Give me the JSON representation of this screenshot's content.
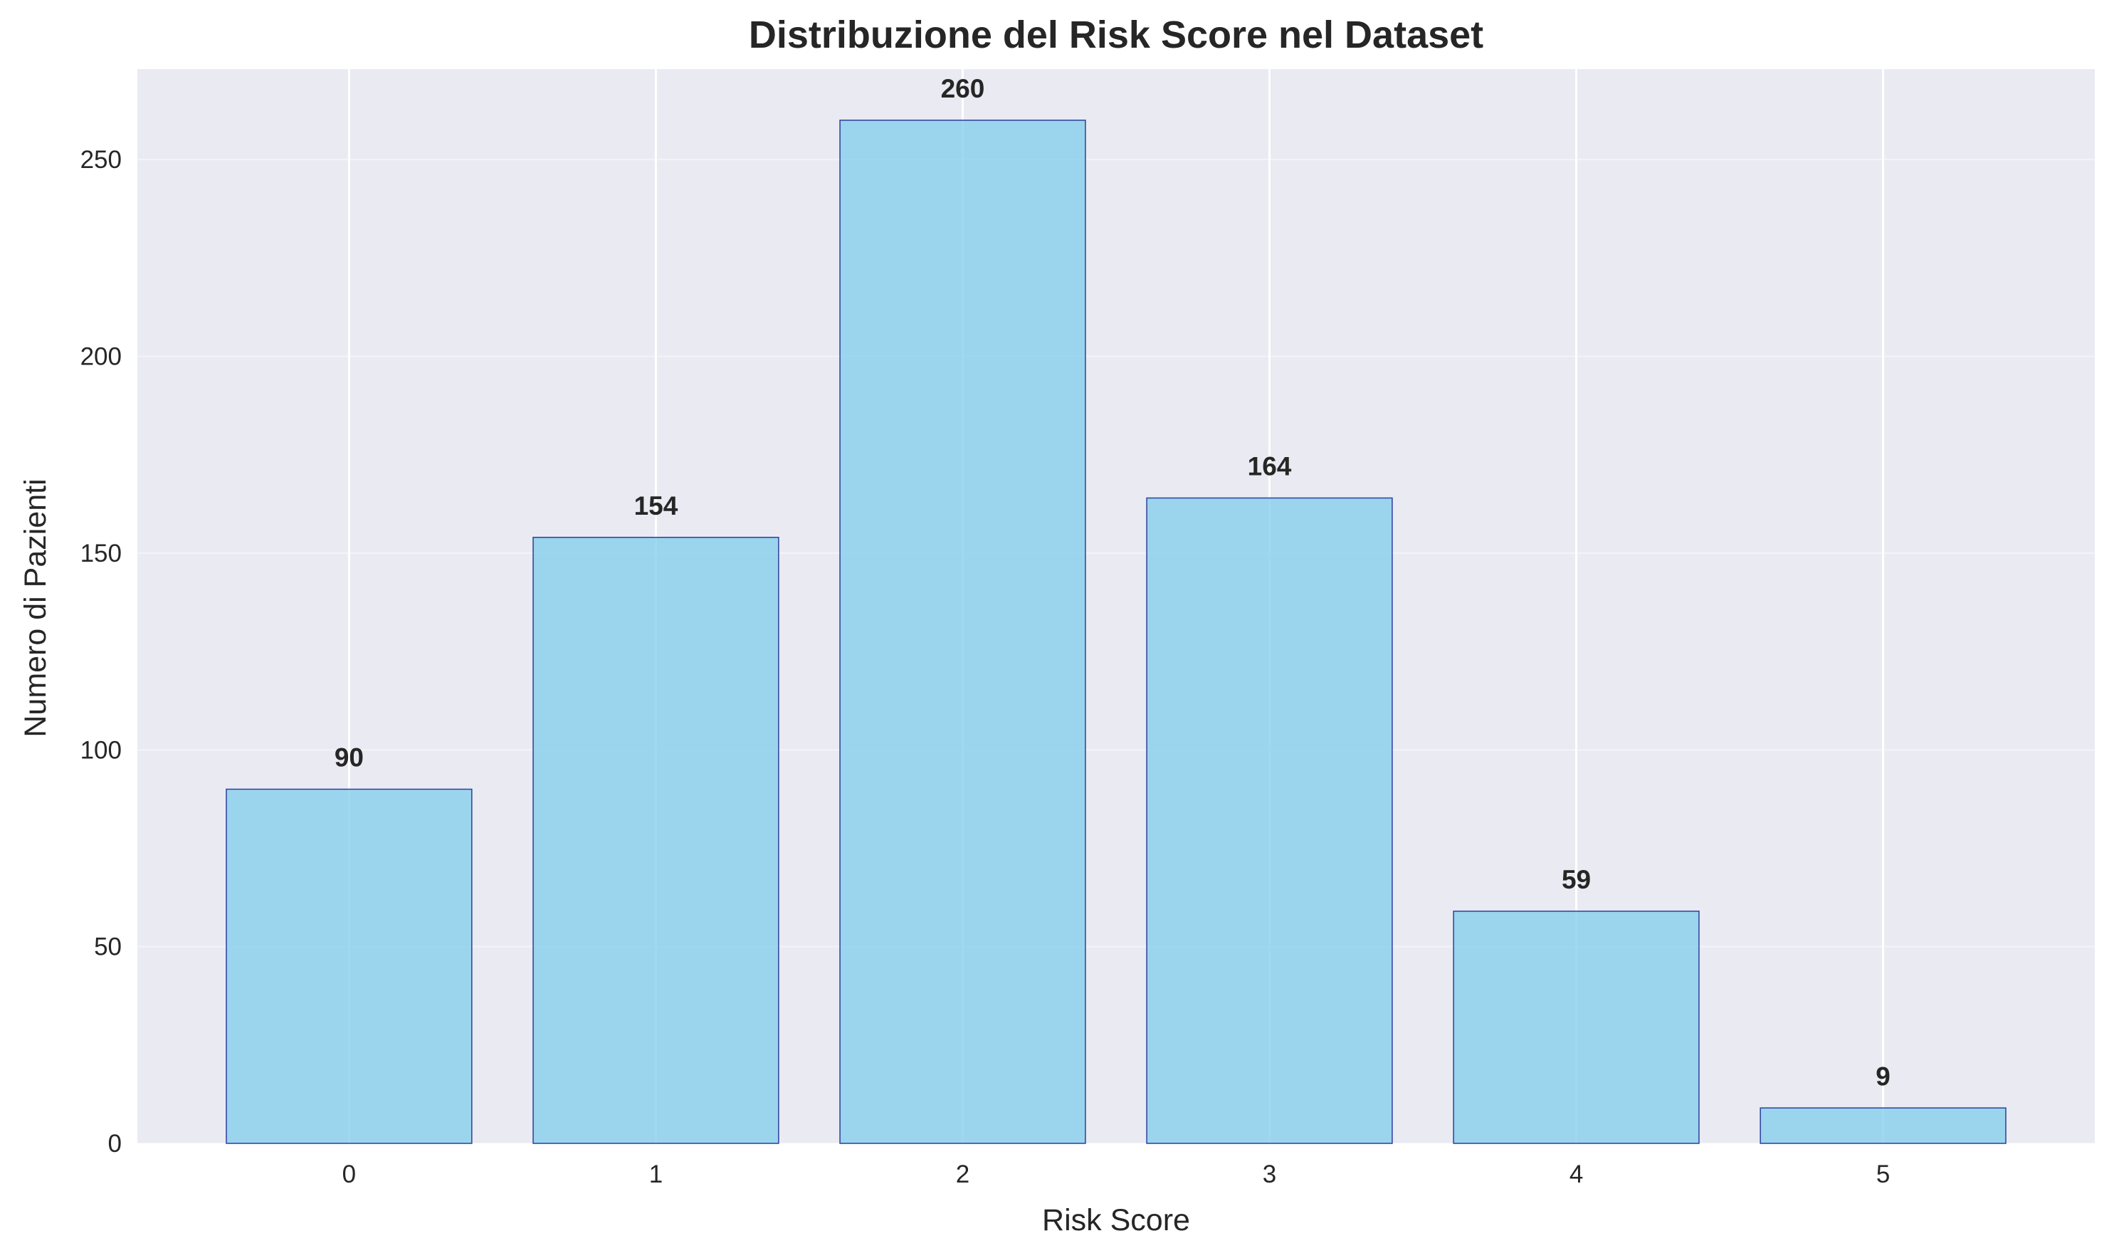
{
  "chart_data": {
    "type": "bar",
    "title": "Distribuzione del Risk Score nel Dataset",
    "xlabel": "Risk Score",
    "ylabel": "Numero di Pazienti",
    "categories": [
      "0",
      "1",
      "2",
      "3",
      "4",
      "5"
    ],
    "values": [
      90,
      154,
      260,
      164,
      59,
      9
    ],
    "data_labels": [
      "90",
      "154",
      "260",
      "164",
      "59",
      "9"
    ],
    "ylim": [
      0,
      273
    ],
    "yticks": [
      0,
      50,
      100,
      150,
      200,
      250
    ],
    "xlim": [
      -0.69,
      5.69
    ],
    "grid": true,
    "colors": {
      "background": "#eaeaf2",
      "bar_fill": "#87ceeb",
      "bar_opacity": 0.8,
      "bar_edge": "#2b3f9e",
      "grid": "#ffffff",
      "text": "#262626"
    }
  }
}
